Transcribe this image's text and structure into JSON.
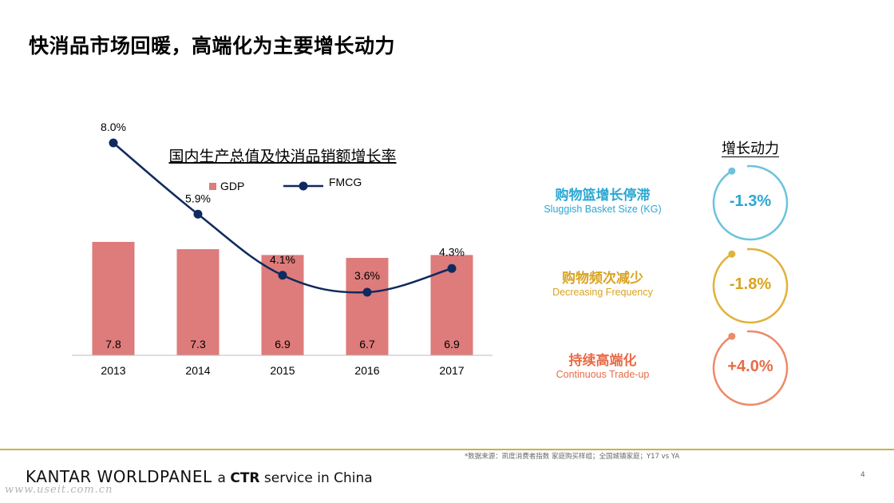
{
  "page": {
    "title": "快消品市场回暖，高端化为主要增长动力",
    "page_number": "4"
  },
  "chart_data": {
    "type": "bar",
    "title": "国内生产总值及快消品销额增长率",
    "categories": [
      "2013",
      "2014",
      "2015",
      "2016",
      "2017"
    ],
    "series": [
      {
        "name": "GDP",
        "type": "bar",
        "values": [
          7.8,
          7.3,
          6.9,
          6.7,
          6.9
        ],
        "labels": [
          "7.8",
          "7.3",
          "6.9",
          "6.7",
          "6.9"
        ],
        "color": "#de7b7b"
      },
      {
        "name": "FMCG",
        "type": "line",
        "values": [
          8.0,
          5.9,
          4.1,
          3.6,
          4.3
        ],
        "labels": [
          "8.0%",
          "5.9%",
          "4.1%",
          "3.6%",
          "4.3%"
        ],
        "color": "#0f2a5e"
      }
    ],
    "legend_position": "top",
    "grid": false
  },
  "drivers": {
    "heading": "增长动力",
    "items": [
      {
        "title": "购物篮增长停滞",
        "subtitle": "Sluggish Basket Size (KG)",
        "value": "-1.3%",
        "color": "#6cc3dc",
        "title_color": "#2aa7d3"
      },
      {
        "title": "购物频次减少",
        "subtitle": "Decreasing Frequency",
        "value": "-1.8%",
        "color": "#e0b23a",
        "title_color": "#d9a321"
      },
      {
        "title": "持续高端化",
        "subtitle": "Continuous Trade-up",
        "value": "+4.0%",
        "color": "#ec8a6a",
        "title_color": "#e86b45"
      }
    ]
  },
  "footer": {
    "source": "*数据来源：凯度消费者指数 家庭购买样组；全国城镇家庭；Y17 vs YA",
    "brand_name": "KANTAR WORLDPANEL",
    "brand_tag_prefix": "a ",
    "brand_tag_bold": "CTR",
    "brand_tag_suffix": " service in China",
    "watermark": "www.useit.com.cn"
  }
}
